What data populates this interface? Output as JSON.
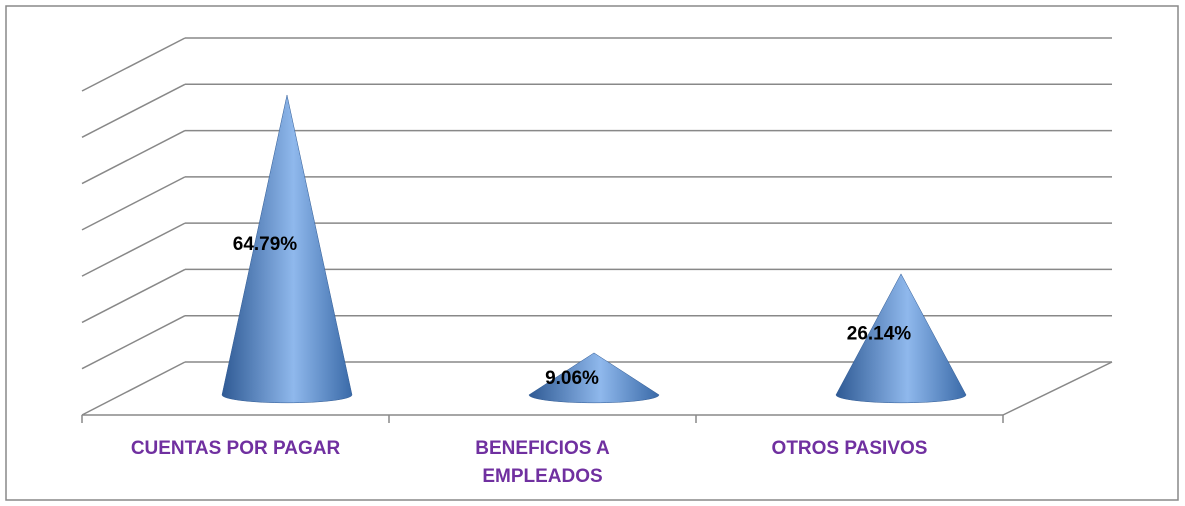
{
  "chart_data": {
    "type": "cone",
    "categories": [
      "CUENTAS POR PAGAR",
      "BENEFICIOS A EMPLEADOS",
      "OTROS PASIVOS"
    ],
    "values": [
      64.79,
      9.06,
      26.14
    ],
    "value_labels": [
      "64.79%",
      "9.06%",
      "26.14%"
    ],
    "color": "#4f81bd",
    "ylim": [
      0,
      70
    ],
    "yticks": [
      0,
      10,
      20,
      30,
      40,
      50,
      60,
      70
    ],
    "grid": true
  }
}
